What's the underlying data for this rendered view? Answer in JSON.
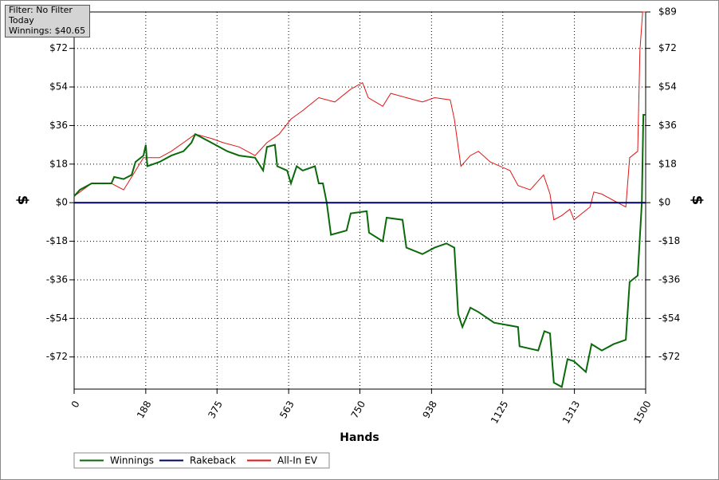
{
  "chart_data": {
    "type": "line",
    "annotations": [
      "Filter: No Filter",
      "Today",
      "Winnings: $40.65"
    ],
    "x_label": "Hands",
    "y_label": "$",
    "y2_label": "$",
    "xlim": [
      0,
      1500
    ],
    "xticks": [
      0,
      188,
      375,
      563,
      750,
      938,
      1125,
      1313,
      1500
    ],
    "ylim": [
      -87,
      89
    ],
    "yticks": [
      {
        "value": -72,
        "label": "-$72"
      },
      {
        "value": -54,
        "label": "-$54"
      },
      {
        "value": -36,
        "label": "-$36"
      },
      {
        "value": -18,
        "label": "-$18"
      },
      {
        "value": 0,
        "label": "$0"
      },
      {
        "value": 18,
        "label": "$18"
      },
      {
        "value": 36,
        "label": "$36"
      },
      {
        "value": 54,
        "label": "$54"
      },
      {
        "value": 72,
        "label": "$72"
      }
    ],
    "y2lim": [
      -87,
      89
    ],
    "y2ticks": [
      {
        "value": -72,
        "label": "-$72"
      },
      {
        "value": -54,
        "label": "-$54"
      },
      {
        "value": -36,
        "label": "-$36"
      },
      {
        "value": -18,
        "label": "-$18"
      },
      {
        "value": 0,
        "label": "$0"
      },
      {
        "value": 18,
        "label": "$18"
      },
      {
        "value": 36,
        "label": "$36"
      },
      {
        "value": 54,
        "label": "$54"
      },
      {
        "value": 72,
        "label": "$72"
      },
      {
        "value": 89,
        "label": "$89"
      }
    ],
    "grid": true,
    "series": [
      {
        "name": "Winnings",
        "color": "#0a6a0a",
        "x": [
          0,
          15,
          46,
          98,
          105,
          130,
          151,
          161,
          182,
          188,
          192,
          224,
          255,
          287,
          308,
          318,
          360,
          381,
          402,
          433,
          475,
          496,
          506,
          527,
          533,
          559,
          569,
          584,
          600,
          632,
          642,
          653,
          663,
          674,
          715,
          726,
          768,
          774,
          810,
          820,
          862,
          872,
          914,
          946,
          977,
          998,
          1008,
          1019,
          1040,
          1061,
          1102,
          1165,
          1169,
          1218,
          1234,
          1249,
          1259,
          1280,
          1295,
          1312,
          1343,
          1358,
          1385,
          1416,
          1448,
          1458,
          1479,
          1490,
          1494,
          1500
        ],
        "values": [
          3,
          6,
          9,
          9,
          12,
          11,
          13,
          19,
          22,
          27,
          17,
          19,
          22,
          24,
          28,
          32,
          28,
          26,
          24,
          22,
          21,
          15,
          26,
          27,
          17,
          15,
          9,
          17,
          15,
          17,
          9,
          9,
          0,
          -15,
          -13,
          -5,
          -4,
          -14,
          -18,
          -7,
          -8,
          -21,
          -24,
          -21,
          -19,
          -21,
          -52,
          -58,
          -49,
          -51,
          -56,
          -58,
          -67,
          -69,
          -60,
          -61,
          -84,
          -86,
          -73,
          -74,
          -79,
          -66,
          -69,
          -66,
          -64,
          -37,
          -34,
          0,
          41,
          41
        ]
      },
      {
        "name": "Rakeback",
        "color": "#000066",
        "x": [
          0,
          1500
        ],
        "values": [
          0,
          0
        ]
      },
      {
        "name": "All-In EV",
        "color": "#e01515",
        "x": [
          0,
          46,
          98,
          130,
          151,
          182,
          224,
          255,
          287,
          318,
          360,
          391,
          433,
          475,
          506,
          538,
          569,
          600,
          642,
          684,
          726,
          757,
          772,
          810,
          831,
          872,
          914,
          946,
          987,
          998,
          1015,
          1040,
          1061,
          1092,
          1144,
          1165,
          1197,
          1232,
          1249,
          1259,
          1280,
          1301,
          1312,
          1354,
          1364,
          1385,
          1416,
          1448,
          1458,
          1479,
          1485,
          1492,
          1500
        ],
        "values": [
          3,
          9,
          9,
          6,
          12,
          21,
          21,
          24,
          28,
          32,
          30,
          28,
          26,
          22,
          28,
          32,
          39,
          43,
          49,
          47,
          53,
          56,
          49,
          45,
          51,
          49,
          47,
          49,
          48,
          39,
          17,
          22,
          24,
          19,
          15,
          8,
          6,
          13,
          4,
          -8,
          -6,
          -3,
          -8,
          -2,
          5,
          4,
          1,
          -2,
          21,
          24,
          71,
          89,
          89
        ]
      }
    ]
  }
}
